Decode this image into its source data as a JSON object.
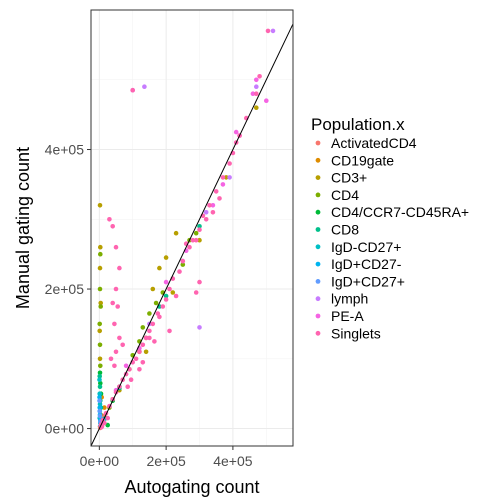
{
  "chart_data": {
    "type": "scatter",
    "xlabel": "Autogating count",
    "ylabel": "Manual gating count",
    "xlim": [
      -25000,
      580000
    ],
    "ylim": [
      -25000,
      600000
    ],
    "x_ticks": [
      {
        "value": 0,
        "label": "0e+00"
      },
      {
        "value": 200000,
        "label": "2e+05"
      },
      {
        "value": 400000,
        "label": "4e+05"
      }
    ],
    "y_ticks": [
      {
        "value": 0,
        "label": "0e+00"
      },
      {
        "value": 200000,
        "label": "2e+05"
      },
      {
        "value": 400000,
        "label": "4e+05"
      }
    ],
    "reference_line": {
      "slope": 1,
      "intercept": 0
    },
    "grid": true,
    "legend": {
      "title": "Population.x",
      "position": "right",
      "items": [
        {
          "label": "ActivatedCD4",
          "color": "#F8766D"
        },
        {
          "label": "CD19gate",
          "color": "#DE8C00"
        },
        {
          "label": "CD3+",
          "color": "#B79F00"
        },
        {
          "label": "CD4",
          "color": "#7CAE00"
        },
        {
          "label": "CD4/CCR7-CD45RA+",
          "color": "#00BA38"
        },
        {
          "label": "CD8",
          "color": "#00C08B"
        },
        {
          "label": "IgD-CD27+",
          "color": "#00BFC4"
        },
        {
          "label": "IgD+CD27-",
          "color": "#00B4F0"
        },
        {
          "label": "IgD+CD27+",
          "color": "#619CFF"
        },
        {
          "label": "lymph",
          "color": "#C77CFF"
        },
        {
          "label": "PE-A",
          "color": "#F564E3"
        },
        {
          "label": "Singlets",
          "color": "#FF64B0"
        }
      ]
    },
    "series": [
      {
        "name": "ActivatedCD4",
        "points": [
          [
            2000,
            3000
          ],
          [
            5000,
            8000
          ],
          [
            8000,
            5000
          ],
          [
            12000,
            18000
          ],
          [
            3000,
            1000
          ]
        ]
      },
      {
        "name": "CD19gate",
        "points": [
          [
            4000,
            20000
          ],
          [
            10000,
            12000
          ],
          [
            15000,
            30000
          ],
          [
            7000,
            45000
          ]
        ]
      },
      {
        "name": "CD3+",
        "points": [
          [
            2000,
            320000
          ],
          [
            3000,
            260000
          ],
          [
            2000,
            230000
          ],
          [
            4000,
            180000
          ],
          [
            1000,
            140000
          ],
          [
            2000,
            100000
          ],
          [
            230000,
            280000
          ],
          [
            180000,
            230000
          ],
          [
            160000,
            200000
          ],
          [
            140000,
            130000
          ],
          [
            120000,
            110000
          ],
          [
            140000,
            110000
          ],
          [
            200000,
            245000
          ],
          [
            300000,
            270000
          ],
          [
            220000,
            195000
          ],
          [
            470000,
            460000
          ],
          [
            380000,
            360000
          ],
          [
            90000,
            85000
          ],
          [
            60000,
            55000
          ]
        ]
      },
      {
        "name": "CD4",
        "points": [
          [
            3000,
            250000
          ],
          [
            2000,
            200000
          ],
          [
            4000,
            175000
          ],
          [
            1000,
            150000
          ],
          [
            2000,
            120000
          ],
          [
            3000,
            90000
          ],
          [
            20000,
            15000
          ],
          [
            30000,
            30000
          ],
          [
            40000,
            42000
          ],
          [
            150000,
            165000
          ],
          [
            170000,
            180000
          ],
          [
            190000,
            195000
          ],
          [
            130000,
            145000
          ],
          [
            100000,
            105000
          ],
          [
            250000,
            235000
          ],
          [
            270000,
            270000
          ],
          [
            290000,
            280000
          ],
          [
            120000,
            125000
          ]
        ]
      },
      {
        "name": "CD4/CCR7-CD45RA+",
        "points": [
          [
            2000,
            80000
          ],
          [
            3000,
            65000
          ],
          [
            5000,
            50000
          ],
          [
            25000,
            5000
          ],
          [
            40000,
            40000
          ],
          [
            60000,
            60000
          ]
        ]
      },
      {
        "name": "CD8",
        "points": [
          [
            1000,
            75000
          ],
          [
            2000,
            60000
          ],
          [
            3000,
            40000
          ],
          [
            5000,
            30000
          ],
          [
            200000,
            190000
          ],
          [
            180000,
            175000
          ],
          [
            60000,
            58000
          ],
          [
            300000,
            290000
          ]
        ]
      },
      {
        "name": "IgD-CD27+",
        "points": [
          [
            500,
            70000
          ],
          [
            1000,
            50000
          ],
          [
            2000,
            35000
          ],
          [
            1500,
            25000
          ],
          [
            1000,
            15000
          ],
          [
            3000,
            8000
          ],
          [
            6000,
            6000
          ],
          [
            10000,
            10000
          ],
          [
            15000,
            14000
          ]
        ]
      },
      {
        "name": "IgD+CD27-",
        "points": [
          [
            500,
            45000
          ],
          [
            1000,
            30000
          ],
          [
            2000,
            20000
          ],
          [
            3000,
            12000
          ],
          [
            4000,
            5000
          ],
          [
            8000,
            8000
          ],
          [
            12000,
            12000
          ]
        ]
      },
      {
        "name": "IgD+CD27+",
        "points": [
          [
            500,
            40000
          ],
          [
            1000,
            25000
          ],
          [
            2000,
            18000
          ],
          [
            3000,
            10000
          ],
          [
            5000,
            4000
          ],
          [
            7000,
            7000
          ]
        ]
      },
      {
        "name": "lymph",
        "points": [
          [
            135000,
            490000
          ],
          [
            100000,
            485000
          ],
          [
            300000,
            145000
          ],
          [
            470000,
            490000
          ],
          [
            520000,
            570000
          ],
          [
            390000,
            360000
          ],
          [
            320000,
            310000
          ],
          [
            250000,
            240000
          ],
          [
            150000,
            150000
          ]
        ]
      },
      {
        "name": "PE-A",
        "points": [
          [
            470000,
            500000
          ],
          [
            460000,
            480000
          ],
          [
            420000,
            420000
          ],
          [
            410000,
            425000
          ],
          [
            340000,
            320000
          ],
          [
            260000,
            255000
          ],
          [
            200000,
            210000
          ],
          [
            120000,
            115000
          ],
          [
            80000,
            90000
          ],
          [
            50000,
            55000
          ],
          [
            30000,
            32000
          ],
          [
            10000,
            12000
          ],
          [
            370000,
            350000
          ],
          [
            500000,
            470000
          ]
        ]
      },
      {
        "name": "Singlets",
        "points": [
          [
            100000,
            485000
          ],
          [
            505000,
            570000
          ],
          [
            480000,
            505000
          ],
          [
            470000,
            480000
          ],
          [
            420000,
            420000
          ],
          [
            400000,
            395000
          ],
          [
            390000,
            380000
          ],
          [
            370000,
            360000
          ],
          [
            350000,
            340000
          ],
          [
            330000,
            320000
          ],
          [
            320000,
            300000
          ],
          [
            300000,
            285000
          ],
          [
            290000,
            270000
          ],
          [
            270000,
            260000
          ],
          [
            250000,
            240000
          ],
          [
            240000,
            225000
          ],
          [
            220000,
            215000
          ],
          [
            210000,
            200000
          ],
          [
            200000,
            185000
          ],
          [
            190000,
            175000
          ],
          [
            175000,
            165000
          ],
          [
            160000,
            150000
          ],
          [
            150000,
            140000
          ],
          [
            140000,
            130000
          ],
          [
            130000,
            120000
          ],
          [
            120000,
            110000
          ],
          [
            110000,
            100000
          ],
          [
            100000,
            95000
          ],
          [
            90000,
            85000
          ],
          [
            80000,
            78000
          ],
          [
            70000,
            70000
          ],
          [
            60000,
            60000
          ],
          [
            50000,
            52000
          ],
          [
            40000,
            42000
          ],
          [
            30000,
            32000
          ],
          [
            20000,
            22000
          ],
          [
            10000,
            12000
          ],
          [
            5000,
            6000
          ],
          [
            30000,
            300000
          ],
          [
            40000,
            290000
          ],
          [
            50000,
            260000
          ],
          [
            60000,
            230000
          ],
          [
            50000,
            200000
          ],
          [
            55000,
            175000
          ],
          [
            40000,
            180000
          ],
          [
            45000,
            150000
          ],
          [
            70000,
            120000
          ],
          [
            60000,
            130000
          ],
          [
            50000,
            110000
          ],
          [
            35000,
            100000
          ],
          [
            45000,
            90000
          ],
          [
            300000,
            210000
          ],
          [
            290000,
            195000
          ],
          [
            210000,
            140000
          ],
          [
            180000,
            160000
          ],
          [
            165000,
            125000
          ],
          [
            150000,
            130000
          ],
          [
            230000,
            190000
          ],
          [
            340000,
            310000
          ],
          [
            360000,
            330000
          ],
          [
            410000,
            410000
          ],
          [
            440000,
            445000
          ],
          [
            280000,
            270000
          ],
          [
            260000,
            265000
          ],
          [
            310000,
            305000
          ],
          [
            120000,
            85000
          ],
          [
            130000,
            95000
          ],
          [
            85000,
            60000
          ],
          [
            95000,
            70000
          ],
          [
            25000,
            15000
          ],
          [
            15000,
            8000
          ],
          [
            8000,
            3000
          ],
          [
            6000,
            2000
          ]
        ]
      }
    ]
  }
}
